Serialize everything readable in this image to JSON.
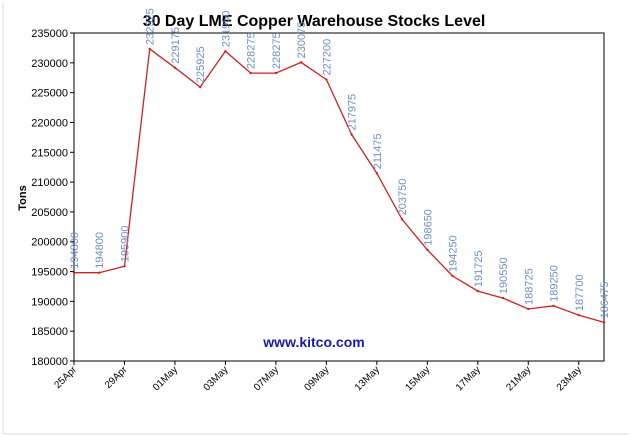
{
  "chart_data": {
    "type": "line",
    "title": "30 Day LME Copper Warehouse Stocks Level",
    "ylabel": "Tons",
    "xlabel": "",
    "watermark": "www.kitco.com",
    "ylim": [
      180000,
      235000
    ],
    "y_ticks": [
      180000,
      185000,
      190000,
      195000,
      200000,
      205000,
      210000,
      215000,
      220000,
      225000,
      230000,
      235000
    ],
    "x_tick_labels": [
      "25Apr",
      "29Apr",
      "01May",
      "03May",
      "07May",
      "09May",
      "13May",
      "15May",
      "17May",
      "21May",
      "23May"
    ],
    "x_tick_positions": [
      0,
      2,
      4,
      6,
      8,
      10,
      12,
      14,
      16,
      18,
      20
    ],
    "point_labels": [
      "194800",
      "194800",
      "195900",
      "232325",
      "229175",
      "225925",
      "231950",
      "228275",
      "228275",
      "230075",
      "227200",
      "217975",
      "211475",
      "203750",
      "198650",
      "194250",
      "191725",
      "190550",
      "188725",
      "189250",
      "187700",
      "186475"
    ],
    "series": [
      {
        "values": [
          194800,
          194800,
          195900,
          232325,
          229175,
          225925,
          231950,
          228275,
          228275,
          230075,
          227200,
          217975,
          211475,
          203750,
          198650,
          194250,
          191725,
          190550,
          188725,
          189250,
          187700,
          186475
        ]
      }
    ],
    "grid": false,
    "colors": {
      "line": "#cc2222",
      "point_label": "#6f8fc4",
      "watermark": "#1a1aa8",
      "axis": "#000000",
      "frame": "#dcdcdc"
    }
  }
}
